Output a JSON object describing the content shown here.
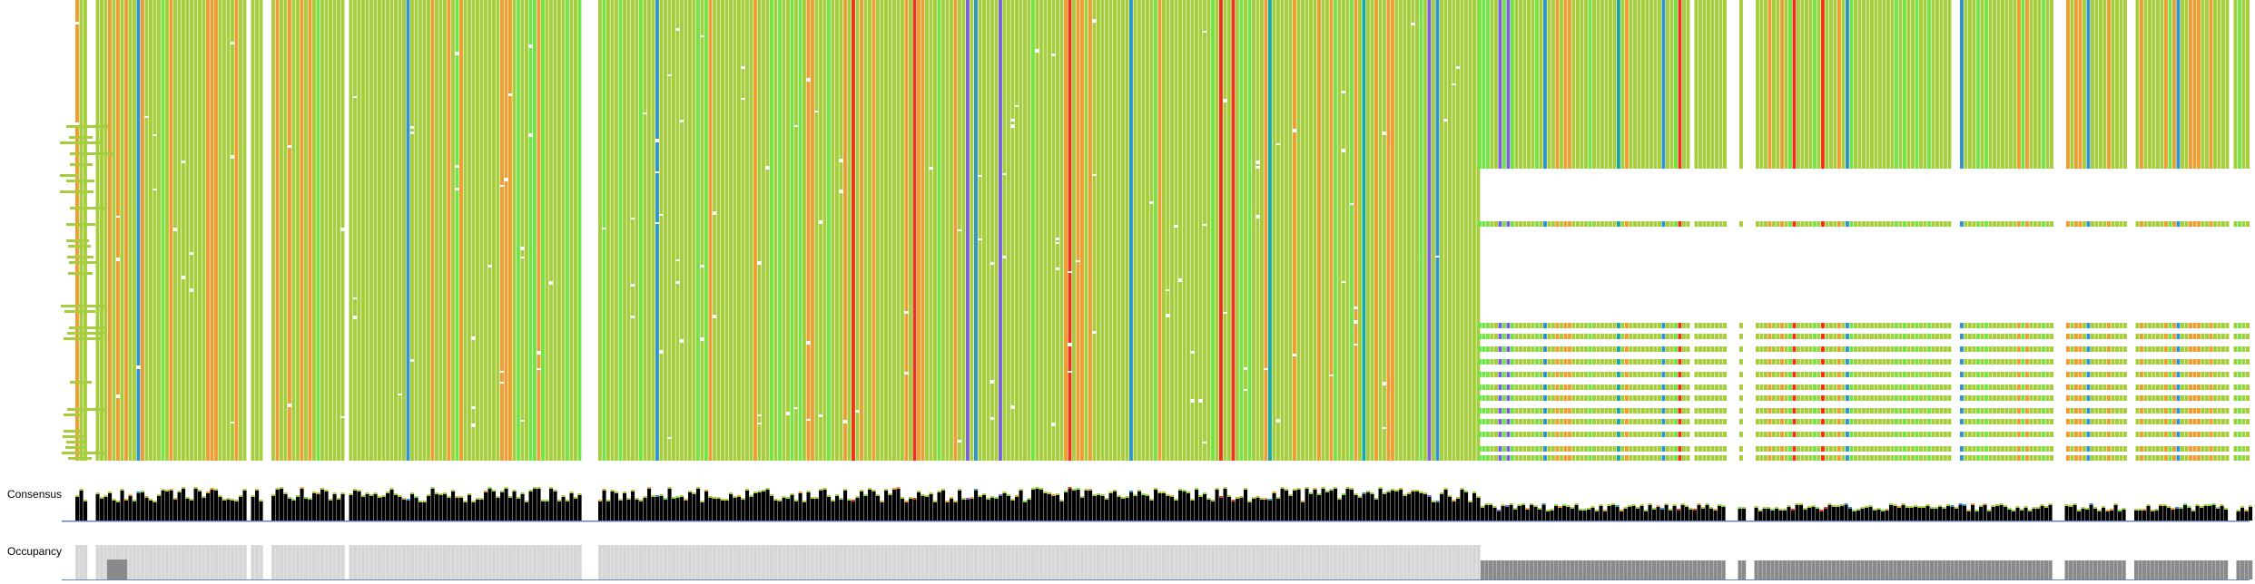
{
  "tracks": {
    "consensus_label": "Consensus",
    "occupancy_label": "Occupancy"
  },
  "colors": {
    "background": "#ffffff",
    "residue_default": "#a6cd3e",
    "residue_bright_green": "#72e446",
    "residue_orange": "#ed9e33",
    "residue_red": "#ec3318",
    "residue_blue": "#2e94c9",
    "residue_purple": "#7a62d2",
    "residue_teal": "#12a9a4",
    "consensus_bar": "#000000",
    "occupancy_full": "#d6d6d6",
    "occupancy_partial": "#8a8a8a"
  }
}
